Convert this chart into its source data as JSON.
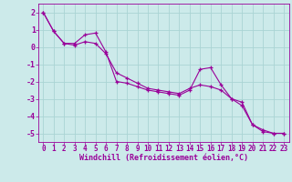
{
  "line1_x": [
    0,
    1,
    2,
    3,
    4,
    5,
    6,
    7,
    8,
    9,
    10,
    11,
    12,
    13,
    14,
    15,
    16,
    17,
    18,
    19,
    20,
    21,
    22,
    23
  ],
  "line1_y": [
    2.0,
    0.9,
    0.2,
    0.2,
    0.7,
    0.8,
    -0.3,
    -2.0,
    -2.1,
    -2.3,
    -2.5,
    -2.6,
    -2.7,
    -2.8,
    -2.5,
    -1.3,
    -1.2,
    -2.2,
    -3.0,
    -3.4,
    -4.5,
    -4.9,
    -5.0,
    -5.0
  ],
  "line2_x": [
    0,
    1,
    2,
    3,
    4,
    5,
    6,
    7,
    8,
    9,
    10,
    11,
    12,
    13,
    14,
    15,
    16,
    17,
    18,
    19,
    20,
    21,
    22,
    23
  ],
  "line2_y": [
    2.0,
    0.9,
    0.2,
    0.1,
    0.3,
    0.2,
    -0.4,
    -1.5,
    -1.8,
    -2.1,
    -2.4,
    -2.5,
    -2.6,
    -2.7,
    -2.4,
    -2.2,
    -2.3,
    -2.5,
    -3.0,
    -3.2,
    -4.5,
    -4.8,
    -5.0,
    -5.0
  ],
  "bg_color": "#cceaea",
  "grid_color": "#aad4d4",
  "line_color": "#990099",
  "xlabel": "Windchill (Refroidissement éolien,°C)",
  "ylim": [
    -5.5,
    2.5
  ],
  "xlim": [
    -0.5,
    23.5
  ],
  "yticks": [
    -5,
    -4,
    -3,
    -2,
    -1,
    0,
    1,
    2
  ],
  "xticks": [
    0,
    1,
    2,
    3,
    4,
    5,
    6,
    7,
    8,
    9,
    10,
    11,
    12,
    13,
    14,
    15,
    16,
    17,
    18,
    19,
    20,
    21,
    22,
    23
  ],
  "tick_fontsize": 5.5,
  "xlabel_fontsize": 6.0
}
